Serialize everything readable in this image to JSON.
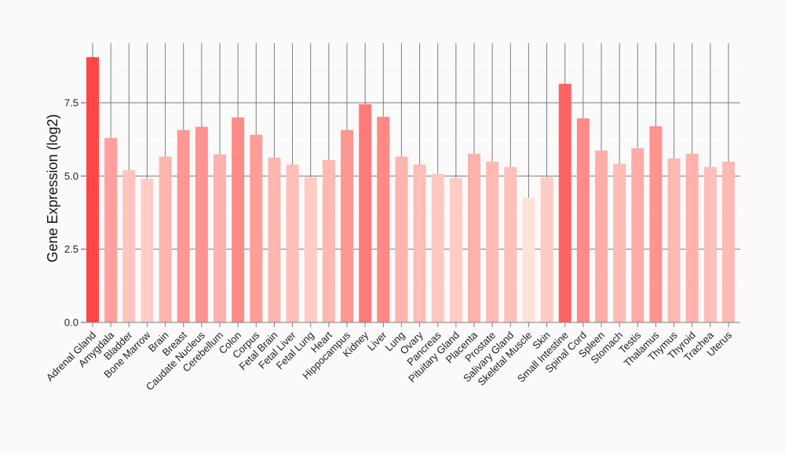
{
  "chart_data": {
    "type": "bar",
    "title": "",
    "xlabel": "",
    "ylabel": "Gene Expression (log2)",
    "ylim": [
      0,
      9.3
    ],
    "yticks": [
      "0.0",
      "2.5",
      "5.0",
      "7.5"
    ],
    "ytick_values": [
      0,
      2.5,
      5.0,
      7.5
    ],
    "grid": true,
    "color_low": "#ffe2da",
    "color_high": "#ff4747",
    "categories": [
      "Adrenal Gland",
      "Amygdala",
      "Bladder",
      "Bone Marrow",
      "Brain",
      "Breast",
      "Caudate Nucleus",
      "Cerebellum",
      "Colon",
      "Corpus",
      "Fetal Brain",
      "Fetal Liver",
      "Fetal Lung",
      "Heart",
      "Hippocampus",
      "Kidney",
      "Liver",
      "Lung",
      "Ovary",
      "Pancreas",
      "Pituitary Gland",
      "Placenta",
      "Prostate",
      "Salivary Gland",
      "Skeletal Muscle",
      "Skin",
      "Small Intestine",
      "Spinal Cord",
      "Spleen",
      "Stomach",
      "Testis",
      "Thalamus",
      "Thymus",
      "Thyroid",
      "Trachea",
      "Uterus"
    ],
    "values": [
      9.06,
      6.3,
      5.2,
      4.91,
      5.66,
      6.57,
      6.68,
      5.74,
      7.0,
      6.41,
      5.63,
      5.39,
      4.96,
      5.55,
      6.57,
      7.45,
      7.02,
      5.66,
      5.39,
      5.07,
      4.93,
      5.76,
      5.49,
      5.31,
      4.26,
      4.96,
      8.15,
      6.97,
      5.87,
      5.42,
      5.95,
      6.7,
      5.6,
      5.76,
      5.31,
      5.49
    ]
  }
}
